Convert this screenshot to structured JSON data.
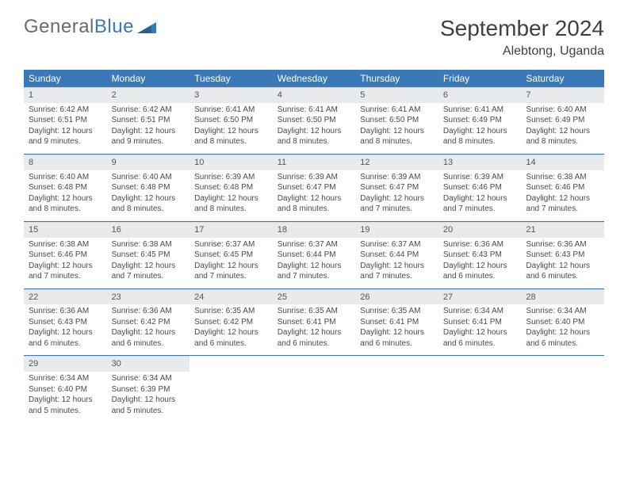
{
  "logo": {
    "gray": "General",
    "blue": "Blue"
  },
  "title": "September 2024",
  "location": "Alebtong, Uganda",
  "colors": {
    "header_bg": "#3a79b7",
    "daynum_bg": "#e9eaeb",
    "text": "#404040",
    "logo_blue": "#3a79b7",
    "logo_gray": "#6b6b6b"
  },
  "weekdays": [
    "Sunday",
    "Monday",
    "Tuesday",
    "Wednesday",
    "Thursday",
    "Friday",
    "Saturday"
  ],
  "weeks": [
    [
      {
        "n": "1",
        "sr": "6:42 AM",
        "ss": "6:51 PM",
        "dl": "12 hours and 9 minutes."
      },
      {
        "n": "2",
        "sr": "6:42 AM",
        "ss": "6:51 PM",
        "dl": "12 hours and 9 minutes."
      },
      {
        "n": "3",
        "sr": "6:41 AM",
        "ss": "6:50 PM",
        "dl": "12 hours and 8 minutes."
      },
      {
        "n": "4",
        "sr": "6:41 AM",
        "ss": "6:50 PM",
        "dl": "12 hours and 8 minutes."
      },
      {
        "n": "5",
        "sr": "6:41 AM",
        "ss": "6:50 PM",
        "dl": "12 hours and 8 minutes."
      },
      {
        "n": "6",
        "sr": "6:41 AM",
        "ss": "6:49 PM",
        "dl": "12 hours and 8 minutes."
      },
      {
        "n": "7",
        "sr": "6:40 AM",
        "ss": "6:49 PM",
        "dl": "12 hours and 8 minutes."
      }
    ],
    [
      {
        "n": "8",
        "sr": "6:40 AM",
        "ss": "6:48 PM",
        "dl": "12 hours and 8 minutes."
      },
      {
        "n": "9",
        "sr": "6:40 AM",
        "ss": "6:48 PM",
        "dl": "12 hours and 8 minutes."
      },
      {
        "n": "10",
        "sr": "6:39 AM",
        "ss": "6:48 PM",
        "dl": "12 hours and 8 minutes."
      },
      {
        "n": "11",
        "sr": "6:39 AM",
        "ss": "6:47 PM",
        "dl": "12 hours and 8 minutes."
      },
      {
        "n": "12",
        "sr": "6:39 AM",
        "ss": "6:47 PM",
        "dl": "12 hours and 7 minutes."
      },
      {
        "n": "13",
        "sr": "6:39 AM",
        "ss": "6:46 PM",
        "dl": "12 hours and 7 minutes."
      },
      {
        "n": "14",
        "sr": "6:38 AM",
        "ss": "6:46 PM",
        "dl": "12 hours and 7 minutes."
      }
    ],
    [
      {
        "n": "15",
        "sr": "6:38 AM",
        "ss": "6:46 PM",
        "dl": "12 hours and 7 minutes."
      },
      {
        "n": "16",
        "sr": "6:38 AM",
        "ss": "6:45 PM",
        "dl": "12 hours and 7 minutes."
      },
      {
        "n": "17",
        "sr": "6:37 AM",
        "ss": "6:45 PM",
        "dl": "12 hours and 7 minutes."
      },
      {
        "n": "18",
        "sr": "6:37 AM",
        "ss": "6:44 PM",
        "dl": "12 hours and 7 minutes."
      },
      {
        "n": "19",
        "sr": "6:37 AM",
        "ss": "6:44 PM",
        "dl": "12 hours and 7 minutes."
      },
      {
        "n": "20",
        "sr": "6:36 AM",
        "ss": "6:43 PM",
        "dl": "12 hours and 6 minutes."
      },
      {
        "n": "21",
        "sr": "6:36 AM",
        "ss": "6:43 PM",
        "dl": "12 hours and 6 minutes."
      }
    ],
    [
      {
        "n": "22",
        "sr": "6:36 AM",
        "ss": "6:43 PM",
        "dl": "12 hours and 6 minutes."
      },
      {
        "n": "23",
        "sr": "6:36 AM",
        "ss": "6:42 PM",
        "dl": "12 hours and 6 minutes."
      },
      {
        "n": "24",
        "sr": "6:35 AM",
        "ss": "6:42 PM",
        "dl": "12 hours and 6 minutes."
      },
      {
        "n": "25",
        "sr": "6:35 AM",
        "ss": "6:41 PM",
        "dl": "12 hours and 6 minutes."
      },
      {
        "n": "26",
        "sr": "6:35 AM",
        "ss": "6:41 PM",
        "dl": "12 hours and 6 minutes."
      },
      {
        "n": "27",
        "sr": "6:34 AM",
        "ss": "6:41 PM",
        "dl": "12 hours and 6 minutes."
      },
      {
        "n": "28",
        "sr": "6:34 AM",
        "ss": "6:40 PM",
        "dl": "12 hours and 6 minutes."
      }
    ],
    [
      {
        "n": "29",
        "sr": "6:34 AM",
        "ss": "6:40 PM",
        "dl": "12 hours and 5 minutes."
      },
      {
        "n": "30",
        "sr": "6:34 AM",
        "ss": "6:39 PM",
        "dl": "12 hours and 5 minutes."
      },
      {
        "empty": true
      },
      {
        "empty": true
      },
      {
        "empty": true
      },
      {
        "empty": true
      },
      {
        "empty": true
      }
    ]
  ],
  "labels": {
    "sunrise": "Sunrise:",
    "sunset": "Sunset:",
    "daylight": "Daylight:"
  }
}
